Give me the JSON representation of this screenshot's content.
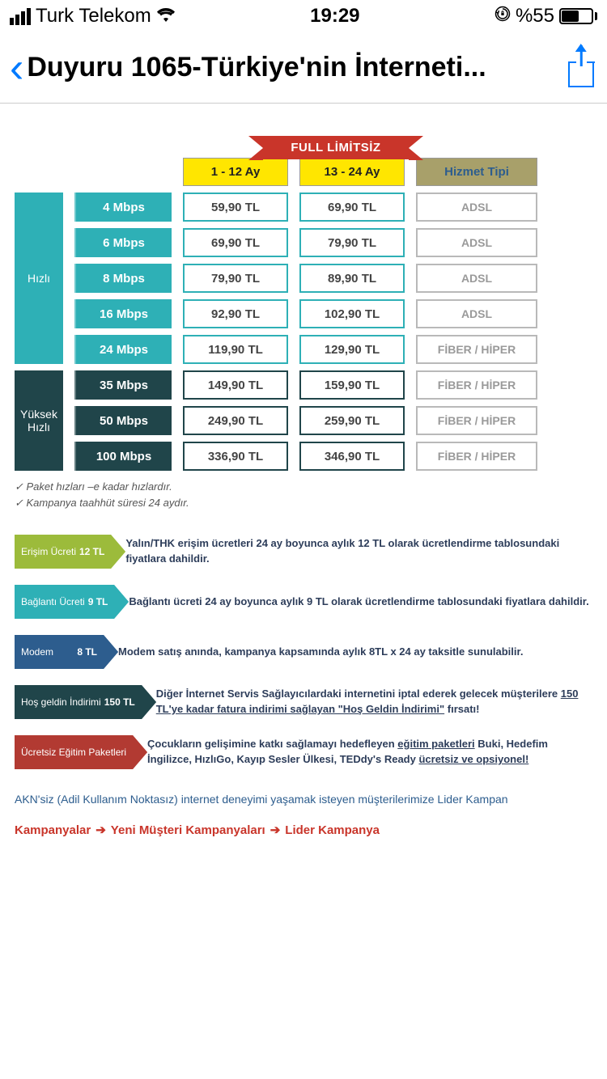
{
  "statusbar": {
    "carrier": "Turk Telekom",
    "time": "19:29",
    "battery_text": "%55",
    "battery_level": 55
  },
  "nav": {
    "title": "Duyuru 1065-Türkiye'nin İnterneti..."
  },
  "banner": "FULL LİMİTSİZ",
  "headers": {
    "period1": "1 - 12 Ay",
    "period2": "13 - 24 Ay",
    "service": "Hizmet Tipi"
  },
  "categories": {
    "fast": {
      "label": "Hızlı",
      "bg": "#2eb0b6",
      "border": "#2eb0b6"
    },
    "very": {
      "label": "Yüksek Hızlı",
      "bg": "#20454a",
      "border": "#20454a"
    }
  },
  "rows": [
    {
      "cat": "fast",
      "speed": "4 Mbps",
      "p1": "59,90 TL",
      "p2": "69,90 TL",
      "svc": "ADSL"
    },
    {
      "cat": "fast",
      "speed": "6 Mbps",
      "p1": "69,90 TL",
      "p2": "79,90 TL",
      "svc": "ADSL"
    },
    {
      "cat": "fast",
      "speed": "8 Mbps",
      "p1": "79,90 TL",
      "p2": "89,90 TL",
      "svc": "ADSL"
    },
    {
      "cat": "fast",
      "speed": "16 Mbps",
      "p1": "92,90 TL",
      "p2": "102,90 TL",
      "svc": "ADSL"
    },
    {
      "cat": "fast",
      "speed": "24 Mbps",
      "p1": "119,90 TL",
      "p2": "129,90 TL",
      "svc": "FİBER / HİPER"
    },
    {
      "cat": "very",
      "speed": "35 Mbps",
      "p1": "149,90 TL",
      "p2": "159,90 TL",
      "svc": "FİBER / HİPER"
    },
    {
      "cat": "very",
      "speed": "50 Mbps",
      "p1": "249,90 TL",
      "p2": "259,90 TL",
      "svc": "FİBER / HİPER"
    },
    {
      "cat": "very",
      "speed": "100 Mbps",
      "p1": "336,90 TL",
      "p2": "346,90 TL",
      "svc": "FİBER / HİPER"
    }
  ],
  "notes": [
    "Paket hızları –e kadar hızlardır.",
    "Kampanya taahhüt süresi 24 aydır."
  ],
  "fees": [
    {
      "label": "Erişim Ücreti",
      "amount": "12 TL",
      "color": "#9cbb3b",
      "desc": "Yalın/THK erişim ücretleri 24 ay boyunca aylık 12 TL olarak ücretlendirme tablosundaki fiyatlara dahildir."
    },
    {
      "label": "Bağlantı Ücreti",
      "amount": "9 TL",
      "color": "#2eb0b6",
      "desc": "Bağlantı ücreti 24 ay boyunca aylık 9 TL olarak ücretlendirme tablosundaki fiyatlara dahildir."
    },
    {
      "label": "Modem",
      "amount": "8 TL",
      "color": "#2d5d8e",
      "desc": "Modem satış anında, kampanya kapsamında aylık 8TL x 24 ay taksitle sunulabilir."
    },
    {
      "label": "Hoş geldin İndirimi",
      "amount": "150 TL",
      "color": "#20454a",
      "desc": "Diğer İnternet Servis Sağlayıcılardaki internetini iptal ederek gelecek müşterilere <u>150 TL'ye kadar fatura indirimi sağlayan \"Hoş Geldin İndirimi\"</u> fırsatı!"
    },
    {
      "label": "Ücretsiz Eğitim Paketleri",
      "amount": "",
      "color": "#b23a32",
      "desc": "Çocukların gelişimine katkı sağlamayı hedefleyen <u>eğitim paketleri</u> Buki, Hedefim İngilizce, HızlıGo, Kayıp Sesler Ülkesi, TEDdy's Ready <u>ücretsiz ve opsiyonel!</u>"
    }
  ],
  "bottom_text": "AKN'siz (Adil Kullanım Noktasız) internet deneyimi yaşamak isteyen müşterilerimize Lider Kampan",
  "breadcrumb": [
    "Kampanyalar",
    "Yeni Müşteri Kampanyaları",
    "Lider Kampanya"
  ]
}
